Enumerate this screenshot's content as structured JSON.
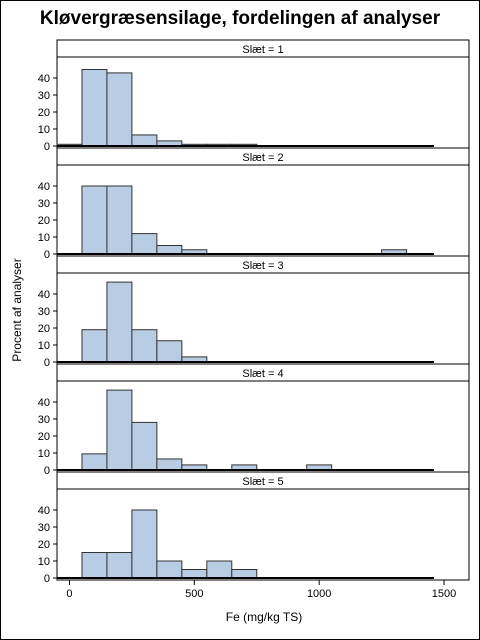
{
  "chart_data": {
    "type": "bar",
    "title": "Kløvergræsensilage, fordelingen af analyser",
    "xlabel": "Fe (mg/kg TS)",
    "ylabel": "Procent af analyser",
    "xlim": [
      -50,
      1600
    ],
    "xticks": [
      0,
      500,
      1000,
      1500
    ],
    "ylim": [
      0,
      50
    ],
    "yticks": [
      0,
      10,
      20,
      30,
      40
    ],
    "bin_width": 100,
    "bin_centers": [
      0,
      100,
      200,
      300,
      400,
      500,
      600,
      700,
      800,
      900,
      1000,
      1100,
      1200,
      1300
    ],
    "panels": [
      {
        "label": "Slæt = 1",
        "values": [
          1,
          45,
          43,
          6.5,
          3,
          1,
          1,
          1,
          0,
          0,
          0,
          0,
          0,
          0
        ]
      },
      {
        "label": "Slæt = 2",
        "values": [
          0,
          40,
          40,
          12,
          5,
          2.5,
          0,
          0,
          0,
          0,
          0,
          0,
          0,
          2.5
        ]
      },
      {
        "label": "Slæt = 3",
        "values": [
          0,
          19,
          47,
          19,
          12.5,
          3,
          0,
          0,
          0,
          0,
          0,
          0,
          0,
          0
        ]
      },
      {
        "label": "Slæt = 4",
        "values": [
          0,
          9.5,
          47,
          28,
          6.5,
          3,
          0,
          3,
          0,
          0,
          3,
          0,
          0,
          0
        ]
      },
      {
        "label": "Slæt = 5",
        "values": [
          0,
          15,
          15,
          40,
          10,
          5,
          10,
          5,
          0,
          0,
          0,
          0,
          0,
          0
        ]
      }
    ],
    "colors": {
      "bar_fill": "#b8cce4",
      "bar_stroke": "#333333",
      "frame": "#000000"
    }
  }
}
